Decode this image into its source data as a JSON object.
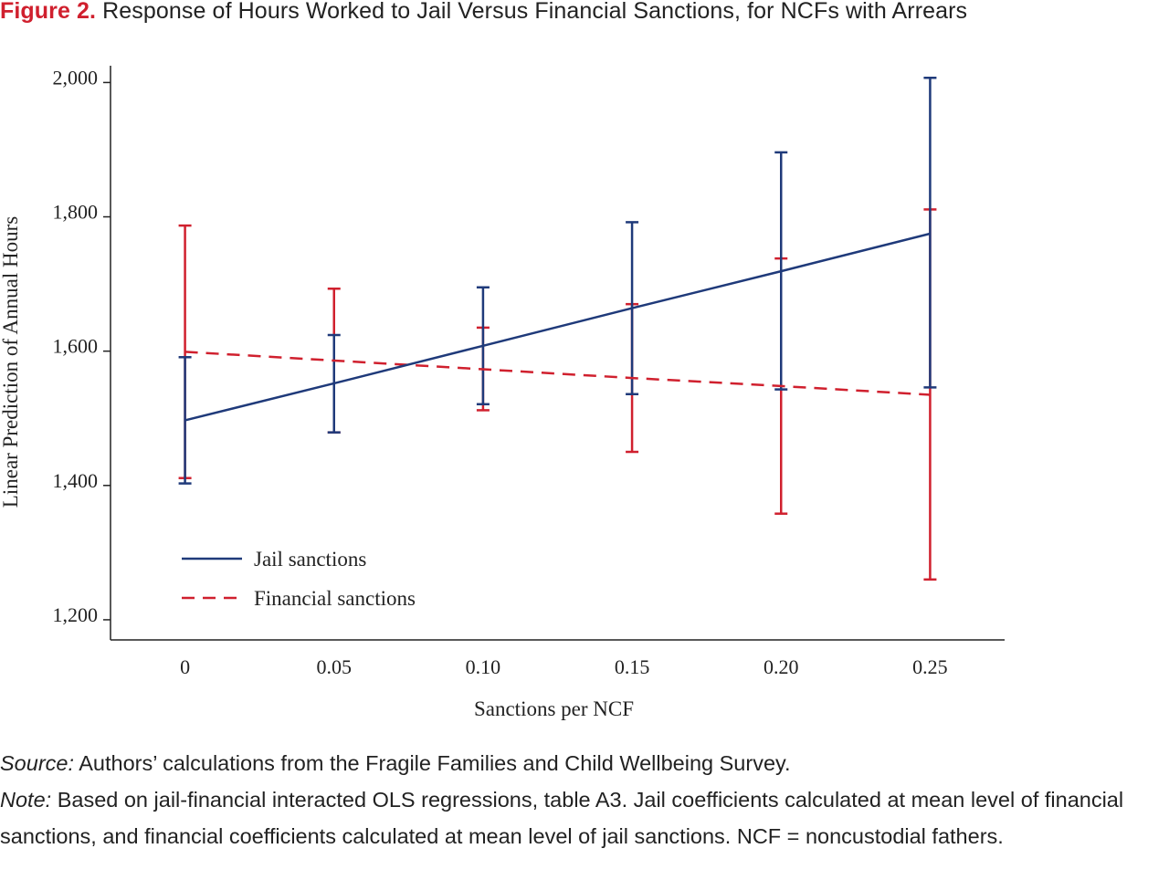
{
  "title": {
    "label": "Figure 2.",
    "text": "Response of Hours Worked to Jail Versus Financial Sanctions, for NCFs with Arrears"
  },
  "colors": {
    "jail": "#1f3a7a",
    "financial": "#d0202e",
    "axis": "#222222",
    "title_label": "#d0202e"
  },
  "chart_data": {
    "type": "line",
    "x": [
      0,
      0.05,
      0.1,
      0.15,
      0.2,
      0.25
    ],
    "x_tick_labels": [
      "0",
      "0.05",
      "0.10",
      "0.15",
      "0.20",
      "0.25"
    ],
    "y_ticks": [
      1200,
      1400,
      1600,
      1800,
      2000
    ],
    "y_tick_labels": [
      "1,200",
      "1,400",
      "1,600",
      "1,800",
      "2,000"
    ],
    "xlim": [
      -0.025,
      0.275
    ],
    "ylim": [
      1170,
      2025
    ],
    "xlabel": "Sanctions per NCF",
    "ylabel": "Linear Prediction of Annual Hours",
    "grid": false,
    "legend_position": "bottom-left",
    "series": [
      {
        "name": "Jail sanctions",
        "style": "solid",
        "values": [
          1497,
          1552,
          1608,
          1664,
          1719,
          1775
        ],
        "ci_low": [
          1403,
          1479,
          1521,
          1536,
          1543,
          1546
        ],
        "ci_high": [
          1591,
          1624,
          1695,
          1792,
          1896,
          2007
        ]
      },
      {
        "name": "Financial sanctions",
        "style": "dashed",
        "values": [
          1599,
          1586,
          1573,
          1560,
          1548,
          1535
        ],
        "ci_low": [
          1411,
          1479,
          1512,
          1450,
          1358,
          1260
        ],
        "ci_high": [
          1787,
          1693,
          1635,
          1670,
          1738,
          1811
        ]
      }
    ]
  },
  "notes": {
    "source_label": "Source:",
    "source_text": " Authors’ calculations from the Fragile Families and Child Wellbeing Survey.",
    "note_label": "Note:",
    "note_text": " Based on jail-financial interacted OLS regressions, table A3. Jail coefficients calculated at mean level of financial sanctions, and financial coefficients calculated at mean level of jail sanctions. NCF = noncustodial fathers."
  }
}
